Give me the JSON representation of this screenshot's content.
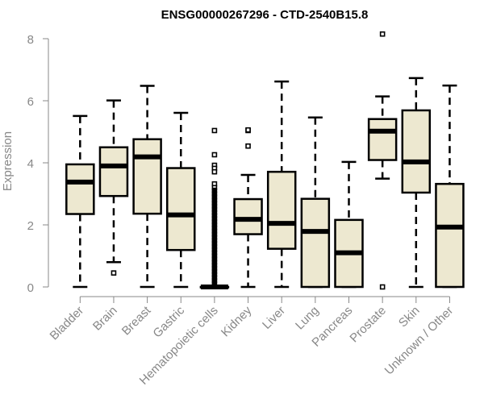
{
  "chart_data": {
    "type": "boxplot",
    "title": "ENSG00000267296 - CTD-2540B15.8",
    "xlabel": "",
    "ylabel": "Expression",
    "ylim": [
      0,
      8
    ],
    "yticks": [
      0,
      2,
      4,
      6,
      8
    ],
    "grid": false,
    "legend": "none",
    "colors": {
      "box_fill": "#ede8d0",
      "box_stroke": "#000000",
      "axis": "#888888",
      "text": "#888888",
      "title": "#000000"
    },
    "categories": [
      "Bladder",
      "Brain",
      "Breast",
      "Gastric",
      "Hematopoietic cells",
      "Kidney",
      "Liver",
      "Lung",
      "Pancreas",
      "Prostate",
      "Skin",
      "Unknown / Other"
    ],
    "boxes": [
      {
        "name": "Bladder",
        "whisker_low": 0,
        "q1": 2.35,
        "median": 3.38,
        "q3": 3.95,
        "whisker_high": 5.51,
        "outliers": []
      },
      {
        "name": "Brain",
        "whisker_low": 0.8,
        "q1": 2.93,
        "median": 3.9,
        "q3": 4.5,
        "whisker_high": 6.01,
        "outliers": [
          0.45
        ]
      },
      {
        "name": "Breast",
        "whisker_low": 0,
        "q1": 2.36,
        "median": 4.19,
        "q3": 4.76,
        "whisker_high": 6.48,
        "outliers": []
      },
      {
        "name": "Gastric",
        "whisker_low": 0,
        "q1": 1.19,
        "median": 2.32,
        "q3": 3.83,
        "whisker_high": 5.61,
        "outliers": []
      },
      {
        "name": "Hematopoietic cells",
        "whisker_low": 0,
        "q1": 0,
        "median": 0,
        "q3": 0,
        "whisker_high": 0,
        "outliers": [
          5.04,
          4.26,
          3.92,
          3.82,
          3.71,
          3.32,
          3.2,
          3.1,
          3.0,
          2.9,
          2.8,
          2.7,
          2.6,
          2.5,
          2.4,
          2.3,
          2.2,
          2.1,
          2.0,
          1.9,
          1.8,
          1.7,
          1.6,
          1.5,
          1.4,
          1.3,
          1.2,
          1.1,
          1.0,
          0.9,
          0.8,
          0.7,
          0.6,
          0.5,
          0.4,
          0.3,
          0.2,
          0.1
        ]
      },
      {
        "name": "Kidney",
        "whisker_low": 0,
        "q1": 1.7,
        "median": 2.18,
        "q3": 2.83,
        "whisker_high": 3.61,
        "outliers": [
          5.04,
          5.06,
          4.54
        ]
      },
      {
        "name": "Liver",
        "whisker_low": 0,
        "q1": 1.23,
        "median": 2.05,
        "q3": 3.71,
        "whisker_high": 6.62,
        "outliers": []
      },
      {
        "name": "Lung",
        "whisker_low": 0,
        "q1": 0,
        "median": 1.79,
        "q3": 2.84,
        "whisker_high": 5.46,
        "outliers": []
      },
      {
        "name": "Pancreas",
        "whisker_low": 0,
        "q1": 0,
        "median": 1.1,
        "q3": 2.16,
        "whisker_high": 4.03,
        "outliers": []
      },
      {
        "name": "Prostate",
        "whisker_low": 3.49,
        "q1": 4.09,
        "median": 5.02,
        "q3": 5.41,
        "whisker_high": 6.14,
        "outliers": [
          8.15,
          0
        ]
      },
      {
        "name": "Skin",
        "whisker_low": 0,
        "q1": 3.04,
        "median": 4.03,
        "q3": 5.69,
        "whisker_high": 6.73,
        "outliers": []
      },
      {
        "name": "Unknown / Other",
        "whisker_low": 0,
        "q1": 0,
        "median": 1.93,
        "q3": 3.32,
        "whisker_high": 6.49,
        "outliers": []
      }
    ]
  }
}
